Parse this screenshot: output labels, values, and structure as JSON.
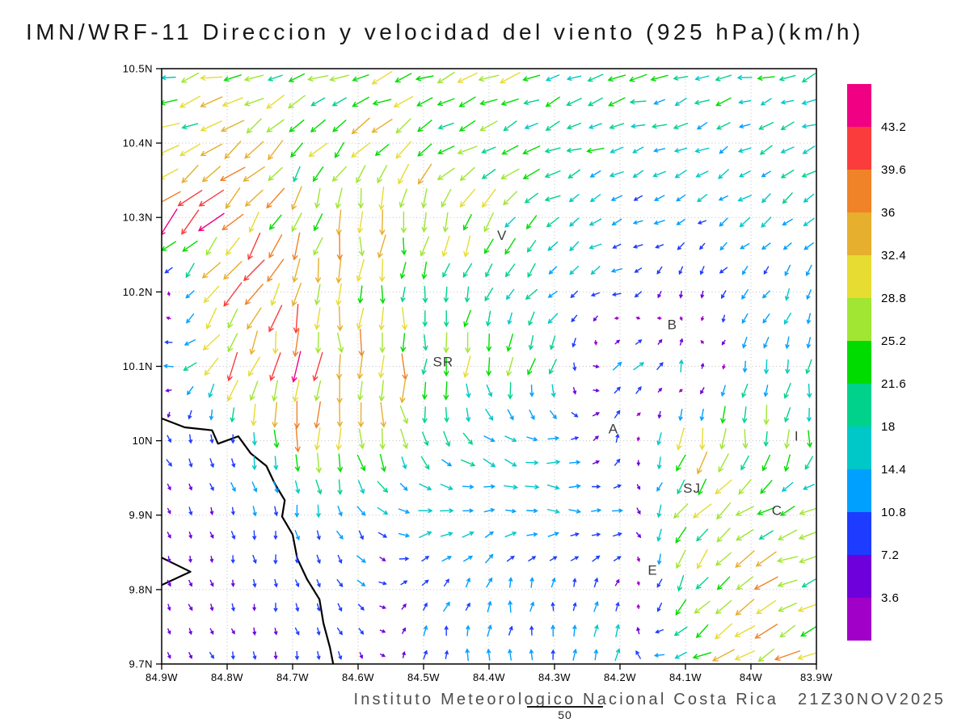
{
  "footer": {
    "text": "Instituto Meteorologico Nacional Costa Rica",
    "timestamp": "21Z30NOV2025"
  },
  "vector_key": {
    "value": "50"
  },
  "chart_data": {
    "type": "vector-field",
    "title": "IMN/WRF-11 Direccion y velocidad del viento (925 hPa)(km/h)",
    "units": "km/h",
    "x_axis": {
      "tick_labels": [
        "84.9W",
        "84.8W",
        "84.7W",
        "84.6W",
        "84.5W",
        "84.4W",
        "84.3W",
        "84.2W",
        "84.1W",
        "84W",
        "83.9W"
      ],
      "tick_values": [
        84.9,
        84.8,
        84.7,
        84.6,
        84.5,
        84.4,
        84.3,
        84.2,
        84.1,
        84.0,
        83.9
      ],
      "range": [
        84.9,
        83.9
      ]
    },
    "y_axis": {
      "tick_labels": [
        "10.5N",
        "10.4N",
        "10.3N",
        "10.2N",
        "10.1N",
        "10N",
        "9.9N",
        "9.8N",
        "9.7N"
      ],
      "tick_values": [
        10.5,
        10.4,
        10.3,
        10.2,
        10.1,
        10.0,
        9.9,
        9.8,
        9.7
      ],
      "range": [
        10.5,
        9.7
      ]
    },
    "colorbar": {
      "tick_labels": [
        "3.6",
        "7.2",
        "10.8",
        "14.4",
        "18",
        "21.6",
        "25.2",
        "28.8",
        "32.4",
        "36",
        "39.6",
        "43.2"
      ],
      "levels": [
        3.6,
        7.2,
        10.8,
        14.4,
        18,
        21.6,
        25.2,
        28.8,
        32.4,
        36,
        39.6,
        43.2
      ],
      "colors": [
        "#a000c8",
        "#6e00dc",
        "#1e3cff",
        "#00a0ff",
        "#00c8c8",
        "#00d28c",
        "#00dc00",
        "#a0e632",
        "#e6dc32",
        "#e6af2d",
        "#f08228",
        "#fa3c3c",
        "#f00082"
      ]
    },
    "stations": [
      {
        "label": "V",
        "lon": 84.38,
        "lat": 10.27
      },
      {
        "label": "B",
        "lon": 84.12,
        "lat": 10.15
      },
      {
        "label": "SR",
        "lon": 84.47,
        "lat": 10.1
      },
      {
        "label": "A",
        "lon": 84.21,
        "lat": 10.01
      },
      {
        "label": "I",
        "lon": 83.93,
        "lat": 10.0
      },
      {
        "label": "SJ",
        "lon": 84.09,
        "lat": 9.93
      },
      {
        "label": "C",
        "lon": 83.96,
        "lat": 9.9
      },
      {
        "label": "E",
        "lon": 84.15,
        "lat": 9.82
      }
    ],
    "coastlines": [
      [
        [
          84.9,
          10.03
        ],
        [
          84.865,
          10.018
        ],
        [
          84.823,
          10.014
        ],
        [
          84.814,
          9.996
        ],
        [
          84.783,
          10.006
        ],
        [
          84.764,
          9.983
        ],
        [
          84.74,
          9.966
        ],
        [
          84.727,
          9.942
        ],
        [
          84.712,
          9.92
        ],
        [
          84.716,
          9.898
        ],
        [
          84.7,
          9.874
        ],
        [
          84.693,
          9.842
        ],
        [
          84.678,
          9.814
        ],
        [
          84.659,
          9.787
        ],
        [
          84.653,
          9.755
        ],
        [
          84.643,
          9.722
        ],
        [
          84.638,
          9.7
        ]
      ],
      [
        [
          84.9,
          9.843
        ],
        [
          84.856,
          9.824
        ],
        [
          84.9,
          9.806
        ]
      ]
    ],
    "wind_field": {
      "lons": [
        84.9,
        84.8,
        84.7,
        84.6,
        84.5,
        84.4,
        84.3,
        84.2,
        84.1,
        84.0,
        83.9
      ],
      "lats": [
        10.5,
        10.4,
        10.3,
        10.2,
        10.1,
        10.0,
        9.9,
        9.8,
        9.7
      ],
      "dir_speed": [
        [
          [
            196,
            22
          ],
          [
            192,
            25
          ],
          [
            200,
            21
          ],
          [
            194,
            27
          ],
          [
            198,
            28
          ],
          [
            193,
            26
          ],
          [
            199,
            23
          ],
          [
            194,
            21
          ],
          [
            199,
            19
          ],
          [
            194,
            21
          ],
          [
            200,
            20
          ]
        ],
        [
          [
            208,
            27
          ],
          [
            214,
            30
          ],
          [
            221,
            25
          ],
          [
            228,
            27
          ],
          [
            214,
            28
          ],
          [
            208,
            24
          ],
          [
            203,
            20
          ],
          [
            199,
            17
          ],
          [
            204,
            15
          ],
          [
            209,
            15
          ],
          [
            204,
            17
          ]
        ],
        [
          [
            224,
            39
          ],
          [
            229,
            34
          ],
          [
            248,
            30
          ],
          [
            264,
            30
          ],
          [
            258,
            31
          ],
          [
            235,
            26
          ],
          [
            212,
            17
          ],
          [
            201,
            13
          ],
          [
            209,
            11
          ],
          [
            214,
            14
          ],
          [
            219,
            14
          ]
        ],
        [
          [
            60,
            6
          ],
          [
            231,
            34
          ],
          [
            254,
            32
          ],
          [
            268,
            28
          ],
          [
            263,
            21
          ],
          [
            242,
            19
          ],
          [
            221,
            13
          ],
          [
            203,
            10
          ],
          [
            268,
            7
          ],
          [
            231,
            11
          ],
          [
            249,
            14
          ]
        ],
        [
          [
            150,
            9
          ],
          [
            236,
            35
          ],
          [
            263,
            39
          ],
          [
            272,
            34
          ],
          [
            269,
            26
          ],
          [
            264,
            23
          ],
          [
            253,
            19
          ],
          [
            35,
            15
          ],
          [
            85,
            12
          ],
          [
            258,
            14
          ],
          [
            263,
            16
          ]
        ],
        [
          [
            298,
            7
          ],
          [
            288,
            9
          ],
          [
            271,
            31
          ],
          [
            279,
            28
          ],
          [
            288,
            20
          ],
          [
            322,
            17
          ],
          [
            356,
            13
          ],
          [
            80,
            8
          ],
          [
            258,
            29
          ],
          [
            262,
            26
          ],
          [
            268,
            17
          ]
        ],
        [
          [
            288,
            6
          ],
          [
            284,
            8
          ],
          [
            279,
            11
          ],
          [
            299,
            13
          ],
          [
            4,
            16
          ],
          [
            8,
            15
          ],
          [
            358,
            15
          ],
          [
            352,
            12
          ],
          [
            228,
            27
          ],
          [
            208,
            23
          ],
          [
            192,
            22
          ]
        ],
        [
          [
            291,
            5
          ],
          [
            286,
            6
          ],
          [
            281,
            8
          ],
          [
            316,
            9
          ],
          [
            58,
            10
          ],
          [
            76,
            12
          ],
          [
            88,
            10
          ],
          [
            68,
            9
          ],
          [
            248,
            23
          ],
          [
            209,
            32
          ],
          [
            198,
            25
          ]
        ],
        [
          [
            299,
            6
          ],
          [
            288,
            6
          ],
          [
            284,
            7
          ],
          [
            299,
            8
          ],
          [
            84,
            10
          ],
          [
            88,
            12
          ],
          [
            84,
            12
          ],
          [
            78,
            16
          ],
          [
            201,
            22
          ],
          [
            214,
            31
          ],
          [
            207,
            28
          ]
        ]
      ]
    }
  }
}
